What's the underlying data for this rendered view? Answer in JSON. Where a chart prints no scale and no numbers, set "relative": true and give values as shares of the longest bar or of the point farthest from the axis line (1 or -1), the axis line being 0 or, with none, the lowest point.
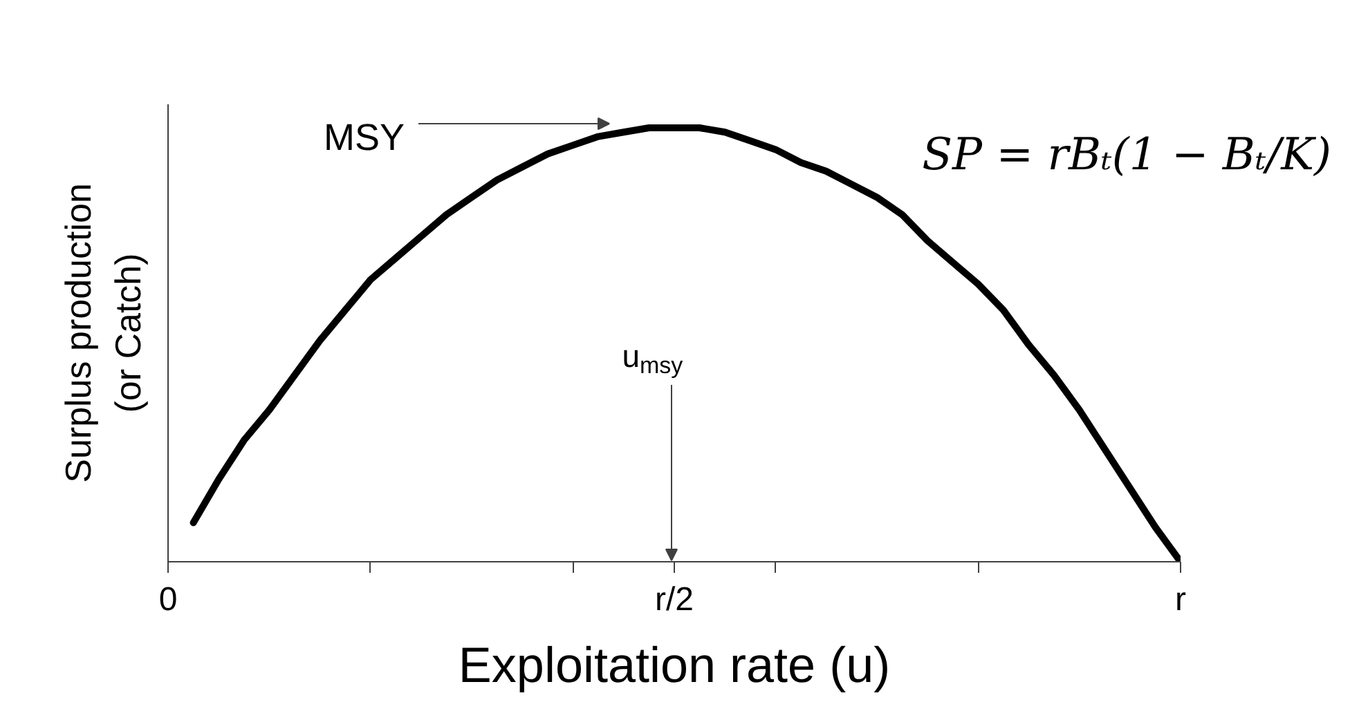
{
  "chart_data": {
    "type": "line",
    "relative": true,
    "xlabel": "Exploitation rate (u)",
    "ylabel": "Surplus production (or Catch)",
    "categories": [
      "0",
      null,
      null,
      null,
      null,
      null,
      null,
      null,
      null,
      null,
      null,
      null,
      null,
      null,
      null,
      null,
      null,
      null,
      null,
      null,
      "r/2",
      null,
      null,
      null,
      null,
      null,
      null,
      null,
      null,
      null,
      null,
      null,
      null,
      null,
      null,
      null,
      null,
      null,
      null,
      null,
      "r"
    ],
    "values": [
      null,
      0.09,
      0.19,
      0.28,
      0.35,
      0.43,
      0.51,
      0.58,
      0.65,
      0.7,
      0.75,
      0.8,
      0.84,
      0.88,
      0.91,
      0.94,
      0.96,
      0.98,
      0.99,
      1.0,
      1.0,
      1.0,
      0.99,
      0.97,
      0.95,
      0.92,
      0.9,
      0.87,
      0.84,
      0.8,
      0.74,
      0.69,
      0.64,
      0.58,
      0.5,
      0.43,
      0.35,
      0.26,
      0.17,
      0.08,
      0.0
    ],
    "color": "#000000",
    "tick_labels": "x",
    "annotations": [
      "MSY",
      "u$_{msy}$",
      "SP = rBₜ(1 − Bₜ/K)"
    ]
  }
}
